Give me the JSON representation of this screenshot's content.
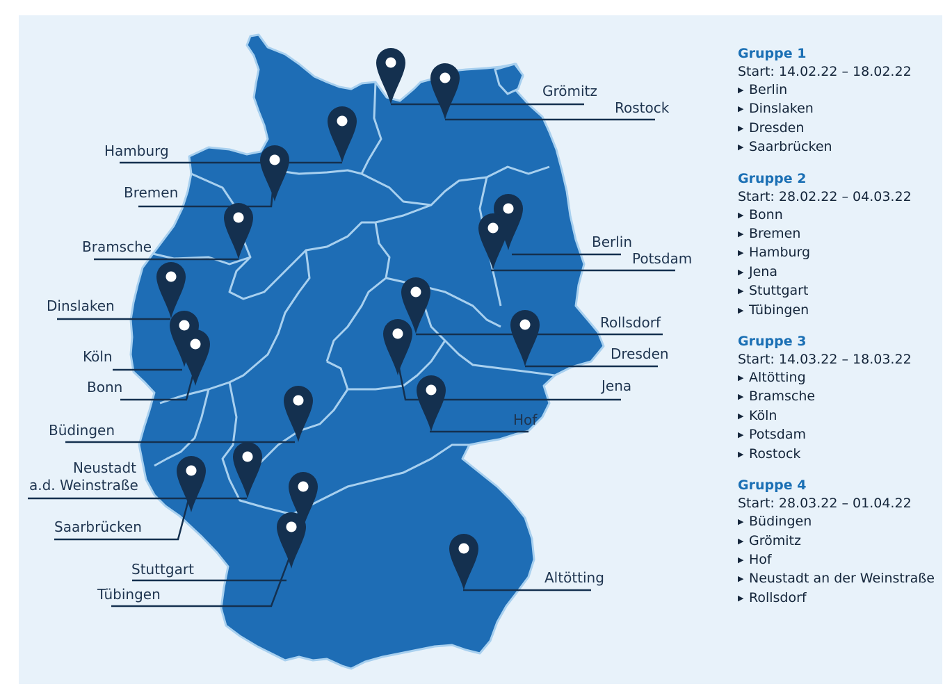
{
  "colors": {
    "background": "#e8f2fa",
    "land": "#1e6db5",
    "borders": "#a8d0ef",
    "pin": "#14304f",
    "group_title": "#1a6fb4"
  },
  "map": {
    "pin_icon": "map-marker-icon",
    "cities": [
      {
        "name": "Grömitz"
      },
      {
        "name": "Rostock"
      },
      {
        "name": "Hamburg"
      },
      {
        "name": "Bremen"
      },
      {
        "name": "Bramsche"
      },
      {
        "name": "Berlin"
      },
      {
        "name": "Potsdam"
      },
      {
        "name": "Dinslaken"
      },
      {
        "name": "Köln"
      },
      {
        "name": "Bonn"
      },
      {
        "name": "Rollsdorf"
      },
      {
        "name": "Dresden"
      },
      {
        "name": "Jena"
      },
      {
        "name": "Hof"
      },
      {
        "name": "Büdingen"
      },
      {
        "name": "Neustadt",
        "name2": "a.d. Weinstraße"
      },
      {
        "name": "Saarbrücken"
      },
      {
        "name": "Stuttgart"
      },
      {
        "name": "Tübingen"
      },
      {
        "name": "Altötting"
      }
    ]
  },
  "legend": {
    "groups": [
      {
        "title": "Gruppe 1",
        "start": "Start: 14.02.22 – 18.02.22",
        "cities": [
          "Berlin",
          "Dinslaken",
          "Dresden",
          "Saarbrücken"
        ]
      },
      {
        "title": "Gruppe 2",
        "start": "Start: 28.02.22 – 04.03.22",
        "cities": [
          "Bonn",
          "Bremen",
          "Hamburg",
          "Jena",
          "Stuttgart",
          "Tübingen"
        ]
      },
      {
        "title": "Gruppe 3",
        "start": "Start: 14.03.22 – 18.03.22",
        "cities": [
          "Altötting",
          "Bramsche",
          "Köln",
          "Potsdam",
          "Rostock"
        ]
      },
      {
        "title": "Gruppe 4",
        "start": "Start: 28.03.22 – 01.04.22",
        "cities": [
          "Büdingen",
          "Grömitz",
          "Hof",
          "Neustadt an der Weinstraße",
          "Rollsdorf"
        ]
      }
    ]
  }
}
